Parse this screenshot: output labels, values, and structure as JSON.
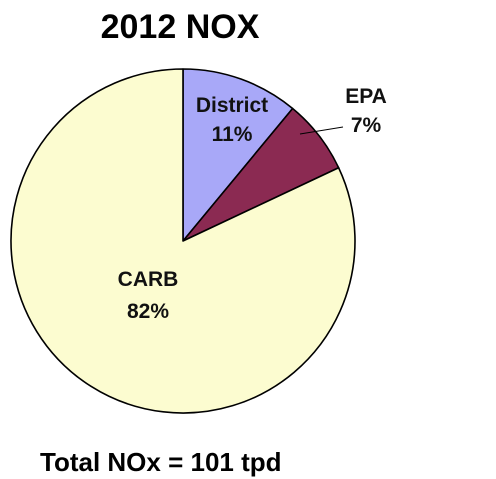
{
  "chart_data": {
    "type": "pie",
    "title": "2012 NOX",
    "caption": "Total NOx = 101 tpd",
    "slices": [
      {
        "label": "District",
        "value": 11,
        "value_label": "11%",
        "color": "#a8a8f8"
      },
      {
        "label": "EPA",
        "value": 7,
        "value_label": "7%",
        "color": "#8b2a52"
      },
      {
        "label": "CARB",
        "value": 82,
        "value_label": "82%",
        "color": "#fcfcd0"
      }
    ],
    "start_angle": "12 o'clock",
    "direction": "clockwise",
    "edge_color": "#000000"
  }
}
